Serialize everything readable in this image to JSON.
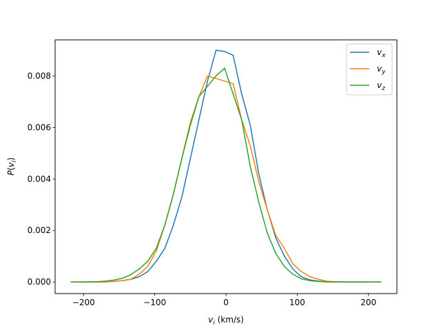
{
  "chart_data": {
    "type": "line",
    "title": "",
    "xlabel": "v_i (km/s)",
    "ylabel": "P(v_i)",
    "xlim": [
      -240,
      240
    ],
    "ylim": [
      -0.00045,
      0.0094
    ],
    "xticks": [
      -200,
      -100,
      0,
      100,
      200
    ],
    "xtick_labels": [
      "−200",
      "−100",
      "0",
      "100",
      "200"
    ],
    "yticks": [
      0.0,
      0.002,
      0.004,
      0.006,
      0.008
    ],
    "ytick_labels": [
      "0.000",
      "0.002",
      "0.004",
      "0.006",
      "0.008"
    ],
    "grid": false,
    "legend_position": "top-right",
    "series": [
      {
        "name": "v_x",
        "color": "#1f77b4",
        "x": [
          -207,
          -194,
          -182,
          -170,
          -158,
          -146,
          -134,
          -122,
          -110,
          -98,
          -86,
          -74,
          -62,
          -50,
          -38,
          -26,
          -14,
          -2,
          10,
          22,
          34,
          46,
          58,
          70,
          82,
          94,
          106,
          118,
          130,
          142,
          154,
          166,
          178,
          190,
          202
        ],
        "y": [
          0.0,
          0.0,
          0.0,
          0.0,
          2e-05,
          5e-05,
          0.0001,
          0.0002,
          0.0004,
          0.0008,
          0.0013,
          0.0022,
          0.0033,
          0.0048,
          0.0063,
          0.0078,
          0.009,
          0.00895,
          0.0088,
          0.0073,
          0.0061,
          0.0042,
          0.0028,
          0.0017,
          0.001,
          0.0005,
          0.0002,
          8e-05,
          3e-05,
          1e-05,
          0.0,
          0.0,
          0.0,
          0.0,
          0.0
        ]
      },
      {
        "name": "v_y",
        "color": "#ff7f0e",
        "x": [
          -218,
          -206,
          -194,
          -182,
          -170,
          -158,
          -146,
          -134,
          -122,
          -110,
          -98,
          -86,
          -74,
          -62,
          -50,
          -38,
          -26,
          -14,
          -2,
          10,
          22,
          34,
          46,
          58,
          70,
          82,
          94,
          106,
          118,
          130,
          142,
          154,
          166,
          178,
          190,
          202,
          218
        ],
        "y": [
          0.0,
          0.0,
          0.0,
          0.0,
          0.0,
          2e-05,
          5e-05,
          0.0001,
          0.0003,
          0.0006,
          0.0012,
          0.0022,
          0.0034,
          0.0048,
          0.0062,
          0.0072,
          0.008,
          0.0079,
          0.0078,
          0.0077,
          0.0063,
          0.0053,
          0.0039,
          0.0028,
          0.0018,
          0.0013,
          0.0007,
          0.0004,
          0.0002,
          0.0001,
          3e-05,
          1e-05,
          0.0,
          0.0,
          0.0,
          0.0,
          0.0
        ]
      },
      {
        "name": "v_z",
        "color": "#2ca02c",
        "x": [
          -218,
          -206,
          -194,
          -182,
          -170,
          -158,
          -146,
          -134,
          -122,
          -110,
          -98,
          -86,
          -74,
          -62,
          -50,
          -38,
          -26,
          -14,
          -2,
          10,
          22,
          34,
          46,
          58,
          70,
          82,
          94,
          106,
          118,
          130,
          142,
          154,
          166,
          178,
          190,
          202,
          218
        ],
        "y": [
          0.0,
          0.0,
          0.0,
          1e-05,
          3e-05,
          7e-05,
          0.00014,
          0.00028,
          0.0005,
          0.0008,
          0.0013,
          0.0022,
          0.0034,
          0.0048,
          0.0061,
          0.0072,
          0.0076,
          0.008,
          0.0083,
          0.0073,
          0.0063,
          0.0045,
          0.0031,
          0.0019,
          0.0011,
          0.0006,
          0.0003,
          0.00012,
          5e-05,
          2e-05,
          0.0,
          0.0,
          0.0,
          0.0,
          0.0,
          0.0,
          0.0
        ]
      }
    ]
  }
}
